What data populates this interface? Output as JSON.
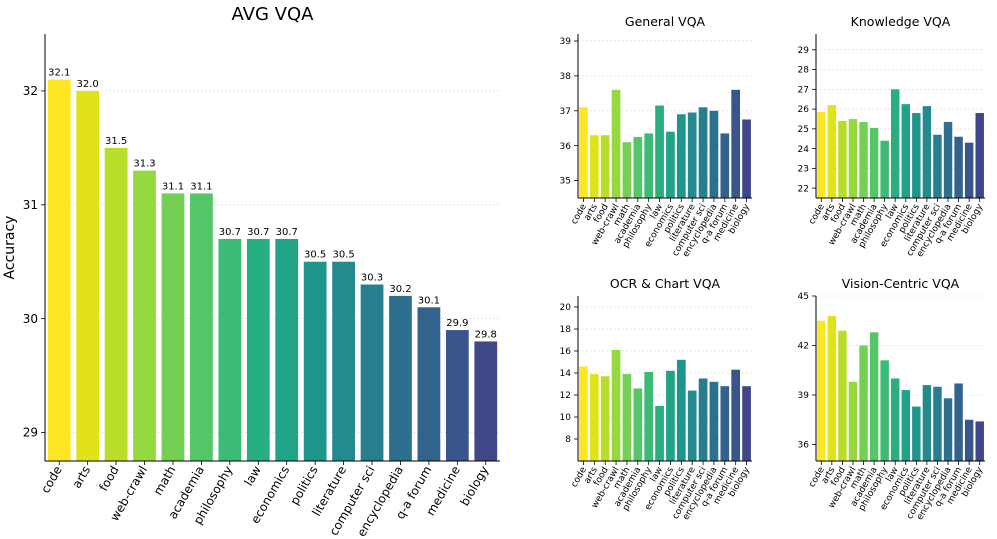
{
  "figure": {
    "colors": [
      "#fde725",
      "#dfe318",
      "#b8de29",
      "#95d840",
      "#73d055",
      "#55c667",
      "#3cbb75",
      "#29af7f",
      "#20a386",
      "#1f968b",
      "#238a8d",
      "#287d8e",
      "#2d708e",
      "#33638d",
      "#39568c",
      "#404788"
    ],
    "ylabel": "Accuracy"
  },
  "chart_data": [
    {
      "id": "avg",
      "type": "bar",
      "title": "AVG VQA",
      "categories": [
        "code",
        "arts",
        "food",
        "web-crawl",
        "math",
        "academia",
        "philosophy",
        "law",
        "economics",
        "politics",
        "literature",
        "computer sci",
        "encyclopedia",
        "q-a forum",
        "medicine",
        "biology"
      ],
      "values": [
        32.1,
        32.0,
        31.5,
        31.3,
        31.1,
        31.1,
        30.7,
        30.7,
        30.7,
        30.5,
        30.5,
        30.3,
        30.2,
        30.1,
        29.9,
        29.8
      ],
      "data_labels": [
        "32.1",
        "32.0",
        "31.5",
        "31.3",
        "31.1",
        "31.1",
        "30.7",
        "30.7",
        "30.7",
        "30.5",
        "30.5",
        "30.3",
        "30.2",
        "30.1",
        "29.9",
        "29.8"
      ],
      "ylim": [
        28.75,
        32.5
      ],
      "yticks": [
        29,
        30,
        31,
        32
      ],
      "ylabel": "Accuracy",
      "grid": true
    },
    {
      "id": "general",
      "type": "bar",
      "title": "General VQA",
      "categories": [
        "code",
        "arts",
        "food",
        "web-crawl",
        "math",
        "academia",
        "philosophy",
        "law",
        "economics",
        "politics",
        "literature",
        "computer sci",
        "encyclopedia",
        "q-a forum",
        "medicine",
        "biology"
      ],
      "values": [
        37.1,
        36.3,
        36.3,
        37.6,
        36.1,
        36.25,
        36.35,
        37.15,
        36.4,
        36.9,
        36.95,
        37.1,
        37.0,
        36.35,
        37.6,
        36.75
      ],
      "ylim": [
        34.5,
        39.2
      ],
      "yticks": [
        35,
        36,
        37,
        38,
        39
      ],
      "grid": true
    },
    {
      "id": "knowledge",
      "type": "bar",
      "title": "Knowledge VQA",
      "categories": [
        "code",
        "arts",
        "food",
        "web-crawl",
        "math",
        "academia",
        "philosophy",
        "law",
        "economics",
        "politics",
        "literature",
        "computer sci",
        "encyclopedia",
        "q-a forum",
        "medicine",
        "biology"
      ],
      "values": [
        25.85,
        26.2,
        25.4,
        25.5,
        25.35,
        25.05,
        24.4,
        27.0,
        26.25,
        25.8,
        26.15,
        24.7,
        25.35,
        24.6,
        24.3,
        25.8
      ],
      "ylim": [
        21.5,
        29.8
      ],
      "yticks": [
        22,
        23,
        24,
        25,
        26,
        27,
        28,
        29
      ],
      "grid": true
    },
    {
      "id": "ocr",
      "type": "bar",
      "title": "OCR & Chart VQA",
      "categories": [
        "code",
        "arts",
        "food",
        "web-crawl",
        "math",
        "academia",
        "philosophy",
        "law",
        "economics",
        "politics",
        "literature",
        "computer sci",
        "encyclopedia",
        "q-a forum",
        "medicine",
        "biology"
      ],
      "values": [
        14.6,
        13.9,
        13.7,
        16.1,
        13.9,
        12.6,
        14.1,
        11.0,
        14.2,
        15.2,
        12.4,
        13.5,
        13.2,
        12.8,
        14.3,
        12.8
      ],
      "ylim": [
        6,
        21
      ],
      "yticks": [
        8,
        10,
        12,
        14,
        16,
        18,
        20
      ],
      "grid": true
    },
    {
      "id": "vision",
      "type": "bar",
      "title": "Vision-Centric VQA",
      "categories": [
        "code",
        "arts",
        "food",
        "web-crawl",
        "math",
        "academia",
        "philosophy",
        "law",
        "economics",
        "politics",
        "literature",
        "computer sci",
        "encyclopedia",
        "q-a forum",
        "medicine",
        "biology"
      ],
      "values": [
        43.5,
        43.8,
        42.9,
        39.8,
        42.0,
        42.8,
        41.1,
        40.0,
        39.3,
        38.3,
        39.6,
        39.5,
        38.8,
        39.7,
        37.5,
        37.4
      ],
      "ylim": [
        35,
        45
      ],
      "yticks": [
        36,
        39,
        42,
        45
      ],
      "grid": true
    }
  ]
}
